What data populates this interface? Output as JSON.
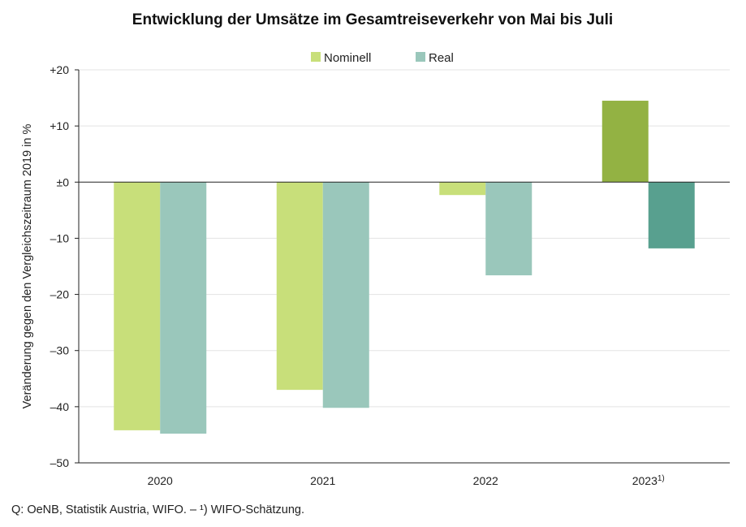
{
  "chart_data": {
    "type": "bar",
    "title": "Entwicklung der Umsätze im Gesamtreiseverkehr von Mai bis Juli",
    "ylabel": "Veränderung gegen den Vergleichszeitraum 2019 in %",
    "xlabel": "",
    "categories": [
      "2020",
      "2021",
      "2022",
      "2023"
    ],
    "category_suffix": [
      "",
      "",
      "",
      "1)"
    ],
    "ylim": [
      -50,
      20
    ],
    "yticks": [
      20,
      10,
      0,
      -10,
      -20,
      -30,
      -40,
      -50
    ],
    "ytick_labels": [
      "+20",
      "+10",
      "±0",
      "–10",
      "–20",
      "–30",
      "–40",
      "–50"
    ],
    "grid": true,
    "legend_position": "top-center",
    "series": [
      {
        "name": "Nominell",
        "values": [
          -44.2,
          -37.0,
          -2.3,
          14.5
        ],
        "colors": [
          "#c8df7a",
          "#c8df7a",
          "#c8df7a",
          "#93b243"
        ]
      },
      {
        "name": "Real",
        "values": [
          -44.8,
          -40.2,
          -16.6,
          -11.8
        ],
        "colors": [
          "#9ac7bb",
          "#9ac7bb",
          "#9ac7bb",
          "#58a08f"
        ]
      }
    ],
    "legend_colors": [
      "#c8df7a",
      "#9ac7bb"
    ],
    "source": "Q: OeNB, Statistik Austria, WIFO. – ¹) WIFO-Schätzung."
  }
}
